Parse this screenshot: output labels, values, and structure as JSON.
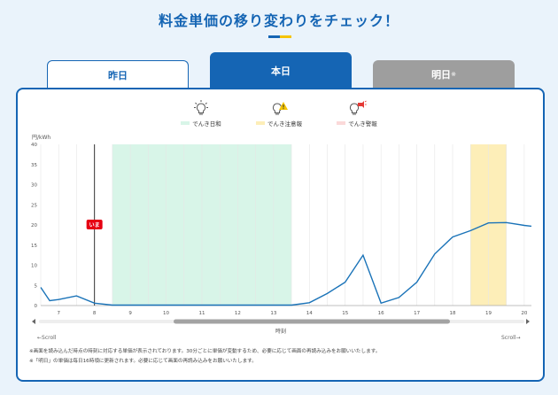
{
  "page": {
    "title": "料金単価の移り変わりをチェック！",
    "title_bar_colors": [
      "#1565b4",
      "#f5c400"
    ]
  },
  "tabs": [
    {
      "label": "昨日",
      "active": false
    },
    {
      "label": "本日",
      "active": true
    },
    {
      "label": "明日",
      "suffix": "※",
      "active": false
    }
  ],
  "legend": [
    {
      "label": "でんき日和",
      "swatch": "#d8f5e8",
      "icon": "lightbulb-icon"
    },
    {
      "label": "でんき注意報",
      "swatch": "#fdeeb8",
      "icon": "lightbulb-warning-icon"
    },
    {
      "label": "でんき警報",
      "swatch": "#fbd9d9",
      "icon": "lightbulb-alarm-icon"
    }
  ],
  "chart_data": {
    "type": "line",
    "ylabel": "円/kWh",
    "xlabel": "時刻",
    "ylim": [
      0,
      40
    ],
    "yticks": [
      0,
      5,
      10,
      15,
      20,
      25,
      30,
      35,
      40
    ],
    "xlim": [
      6.5,
      20.2
    ],
    "xticks": [
      7,
      8,
      9,
      10,
      11,
      12,
      13,
      14,
      15,
      16,
      17,
      18,
      19,
      20
    ],
    "series_color": "#1a73b8",
    "x": [
      6.5,
      6.75,
      7.0,
      7.5,
      8.0,
      8.5,
      9.0,
      9.5,
      10.0,
      10.5,
      11.0,
      11.5,
      12.0,
      12.5,
      13.0,
      13.5,
      14.0,
      14.5,
      15.0,
      15.5,
      16.0,
      16.5,
      17.0,
      17.5,
      18.0,
      18.5,
      19.0,
      19.5,
      20.0,
      20.2
    ],
    "values": [
      4.5,
      1.2,
      1.5,
      2.4,
      0.6,
      0.1,
      0.1,
      0.1,
      0.1,
      0.1,
      0.1,
      0.1,
      0.1,
      0.1,
      0.1,
      0.1,
      0.7,
      3.0,
      5.8,
      12.5,
      0.6,
      2.0,
      5.8,
      12.8,
      17.0,
      18.6,
      20.5,
      20.6,
      19.9,
      19.7
    ],
    "bands": [
      {
        "type": "でんき日和",
        "from": 8.5,
        "to": 13.5,
        "color": "#d8f5e8"
      },
      {
        "type": "でんき注意報",
        "from": 18.5,
        "to": 19.5,
        "color": "#fdeeb8"
      }
    ],
    "now": {
      "x": 8.0,
      "label": "いま",
      "badge_y": 20
    }
  },
  "scroll": {
    "left_label": "←Scroll",
    "right_label": "Scroll→"
  },
  "notes": [
    "※画面を読み込んだ時点の時刻に対応する単価が表示されております。30分ごとに単価が変動するため、必要に応じて画面の再読み込みをお願いいたします。",
    "※「明日」の単価は毎日16時頃に更新されます。必要に応じて画面の再読み込みをお願いいたします。"
  ]
}
